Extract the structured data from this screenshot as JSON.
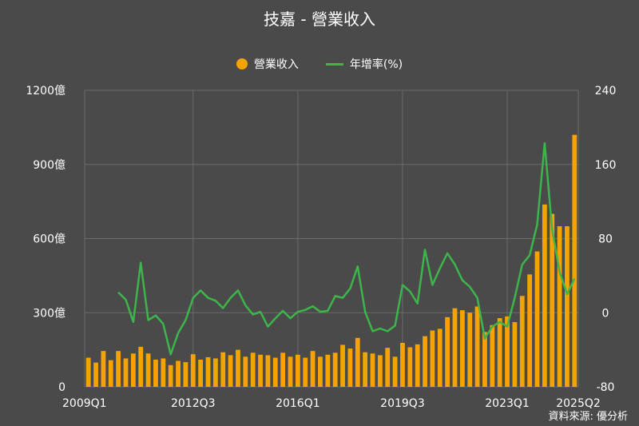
{
  "title": "技嘉 - 營業收入",
  "source": "資料來源: 優分析",
  "colors": {
    "background": "#4a4a4a",
    "bar": "#f5a300",
    "line": "#3cb54a",
    "grid": "#6a6a6a"
  },
  "chart_data": {
    "type": "bar+line",
    "legend": [
      "營業收入",
      "年增率(%)"
    ],
    "legend_position": "top",
    "grid": true,
    "x_tick_labels": [
      "2009Q1",
      "2012Q3",
      "2016Q1",
      "2019Q3",
      "2023Q1",
      "2025Q2"
    ],
    "left_axis": {
      "ticks": [
        "0",
        "300億",
        "600億",
        "900億",
        "1200億"
      ],
      "ylim": [
        0,
        1200
      ]
    },
    "right_axis": {
      "ticks": [
        "-80",
        "0",
        "80",
        "160",
        "240"
      ],
      "ylim": [
        -80,
        240
      ]
    },
    "categories": [
      "2009Q1",
      "2009Q2",
      "2009Q3",
      "2009Q4",
      "2010Q1",
      "2010Q2",
      "2010Q3",
      "2010Q4",
      "2011Q1",
      "2011Q2",
      "2011Q3",
      "2011Q4",
      "2012Q1",
      "2012Q2",
      "2012Q3",
      "2012Q4",
      "2013Q1",
      "2013Q2",
      "2013Q3",
      "2013Q4",
      "2014Q1",
      "2014Q2",
      "2014Q3",
      "2014Q4",
      "2015Q1",
      "2015Q2",
      "2015Q3",
      "2015Q4",
      "2016Q1",
      "2016Q2",
      "2016Q3",
      "2016Q4",
      "2017Q1",
      "2017Q2",
      "2017Q3",
      "2017Q4",
      "2018Q1",
      "2018Q2",
      "2018Q3",
      "2018Q4",
      "2019Q1",
      "2019Q2",
      "2019Q3",
      "2019Q4",
      "2020Q1",
      "2020Q2",
      "2020Q3",
      "2020Q4",
      "2021Q1",
      "2021Q2",
      "2021Q3",
      "2021Q4",
      "2022Q1",
      "2022Q2",
      "2022Q3",
      "2022Q4",
      "2023Q1",
      "2023Q2",
      "2023Q3",
      "2023Q4",
      "2024Q1",
      "2024Q2",
      "2024Q3",
      "2024Q4",
      "2025Q1",
      "2025Q2"
    ],
    "series": [
      {
        "name": "營業收入",
        "axis": "left",
        "values": [
          118,
          98,
          145,
          108,
          145,
          115,
          135,
          162,
          135,
          110,
          115,
          88,
          105,
          100,
          132,
          110,
          120,
          115,
          140,
          128,
          150,
          122,
          138,
          130,
          128,
          118,
          138,
          122,
          130,
          118,
          145,
          122,
          130,
          138,
          170,
          155,
          198,
          140,
          135,
          128,
          158,
          122,
          178,
          160,
          172,
          205,
          228,
          235,
          282,
          318,
          310,
          300,
          325,
          222,
          250,
          278,
          285,
          262,
          368,
          455,
          548,
          738,
          700,
          650,
          650,
          1020
        ]
      },
      {
        "name": "年增率(%)",
        "axis": "right",
        "values": [
          null,
          null,
          null,
          null,
          22,
          14,
          -10,
          54,
          -8,
          -3,
          -12,
          -45,
          -22,
          -8,
          16,
          24,
          16,
          13,
          5,
          16,
          24,
          8,
          -2,
          1,
          -15,
          -6,
          2,
          -6,
          1,
          3,
          7,
          1,
          2,
          18,
          16,
          26,
          50,
          1,
          -20,
          -17,
          -20,
          -14,
          30,
          23,
          10,
          68,
          30,
          48,
          64,
          52,
          35,
          28,
          16,
          -28,
          -15,
          -10,
          -15,
          16,
          52,
          62,
          95,
          183,
          90,
          44,
          20,
          37
        ]
      }
    ]
  }
}
